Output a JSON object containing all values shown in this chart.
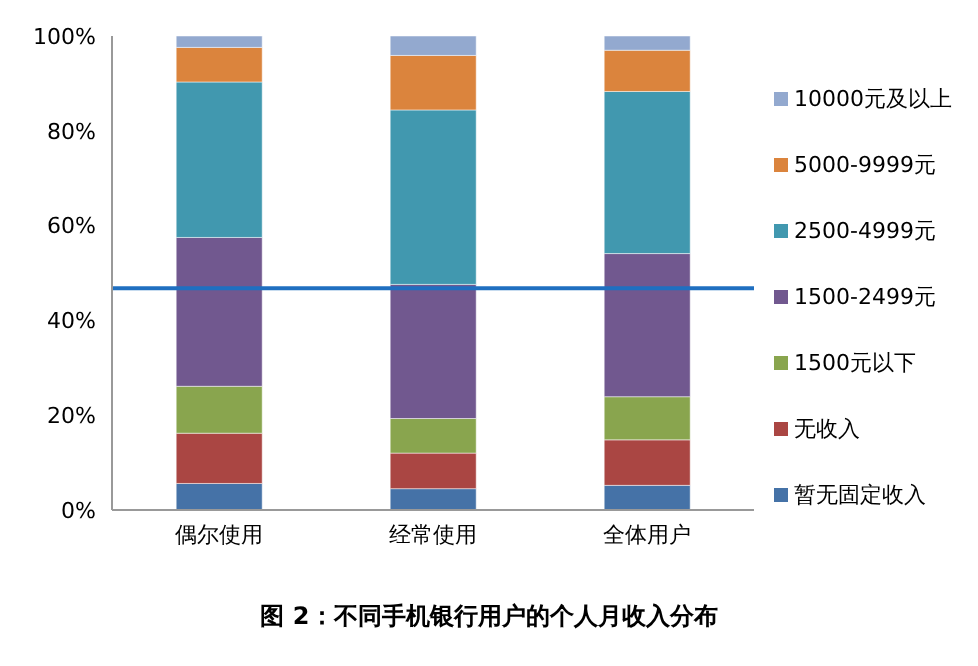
{
  "chart_data": {
    "type": "bar",
    "stacked": true,
    "title": "图 2：不同手机银行用户的个人月收入分布",
    "categories": [
      "偶尔使用",
      "经常使用",
      "全体用户"
    ],
    "series": [
      {
        "name": "暂无固定收入",
        "color": "#4572a7",
        "values": [
          5.6,
          4.5,
          5.2
        ]
      },
      {
        "name": "无收入",
        "color": "#aa4643",
        "values": [
          10.6,
          7.5,
          9.6
        ]
      },
      {
        "name": "1500元以下",
        "color": "#89a54e",
        "values": [
          9.9,
          7.3,
          9.1
        ]
      },
      {
        "name": "1500-2499元",
        "color": "#71588f",
        "values": [
          31.4,
          28.3,
          30.2
        ]
      },
      {
        "name": "2500-4999元",
        "color": "#4198af",
        "values": [
          32.8,
          36.8,
          34.2
        ]
      },
      {
        "name": "5000-9999元",
        "color": "#db843d",
        "values": [
          7.3,
          11.5,
          8.7
        ]
      },
      {
        "name": "10000元及以上",
        "color": "#93a9cf",
        "values": [
          2.4,
          4.1,
          3.0
        ]
      }
    ],
    "ylim": [
      0,
      100
    ],
    "yticks": [
      {
        "value": 0,
        "label": "0%"
      },
      {
        "value": 20,
        "label": "20%"
      },
      {
        "value": 40,
        "label": "40%"
      },
      {
        "value": 60,
        "label": "60%"
      },
      {
        "value": 80,
        "label": "80%"
      },
      {
        "value": 100,
        "label": "100%"
      }
    ],
    "ref_lines": [
      {
        "axis": "y",
        "value": 46.8,
        "color": "#1f6fc0"
      }
    ],
    "grid": false,
    "legend": "right"
  }
}
